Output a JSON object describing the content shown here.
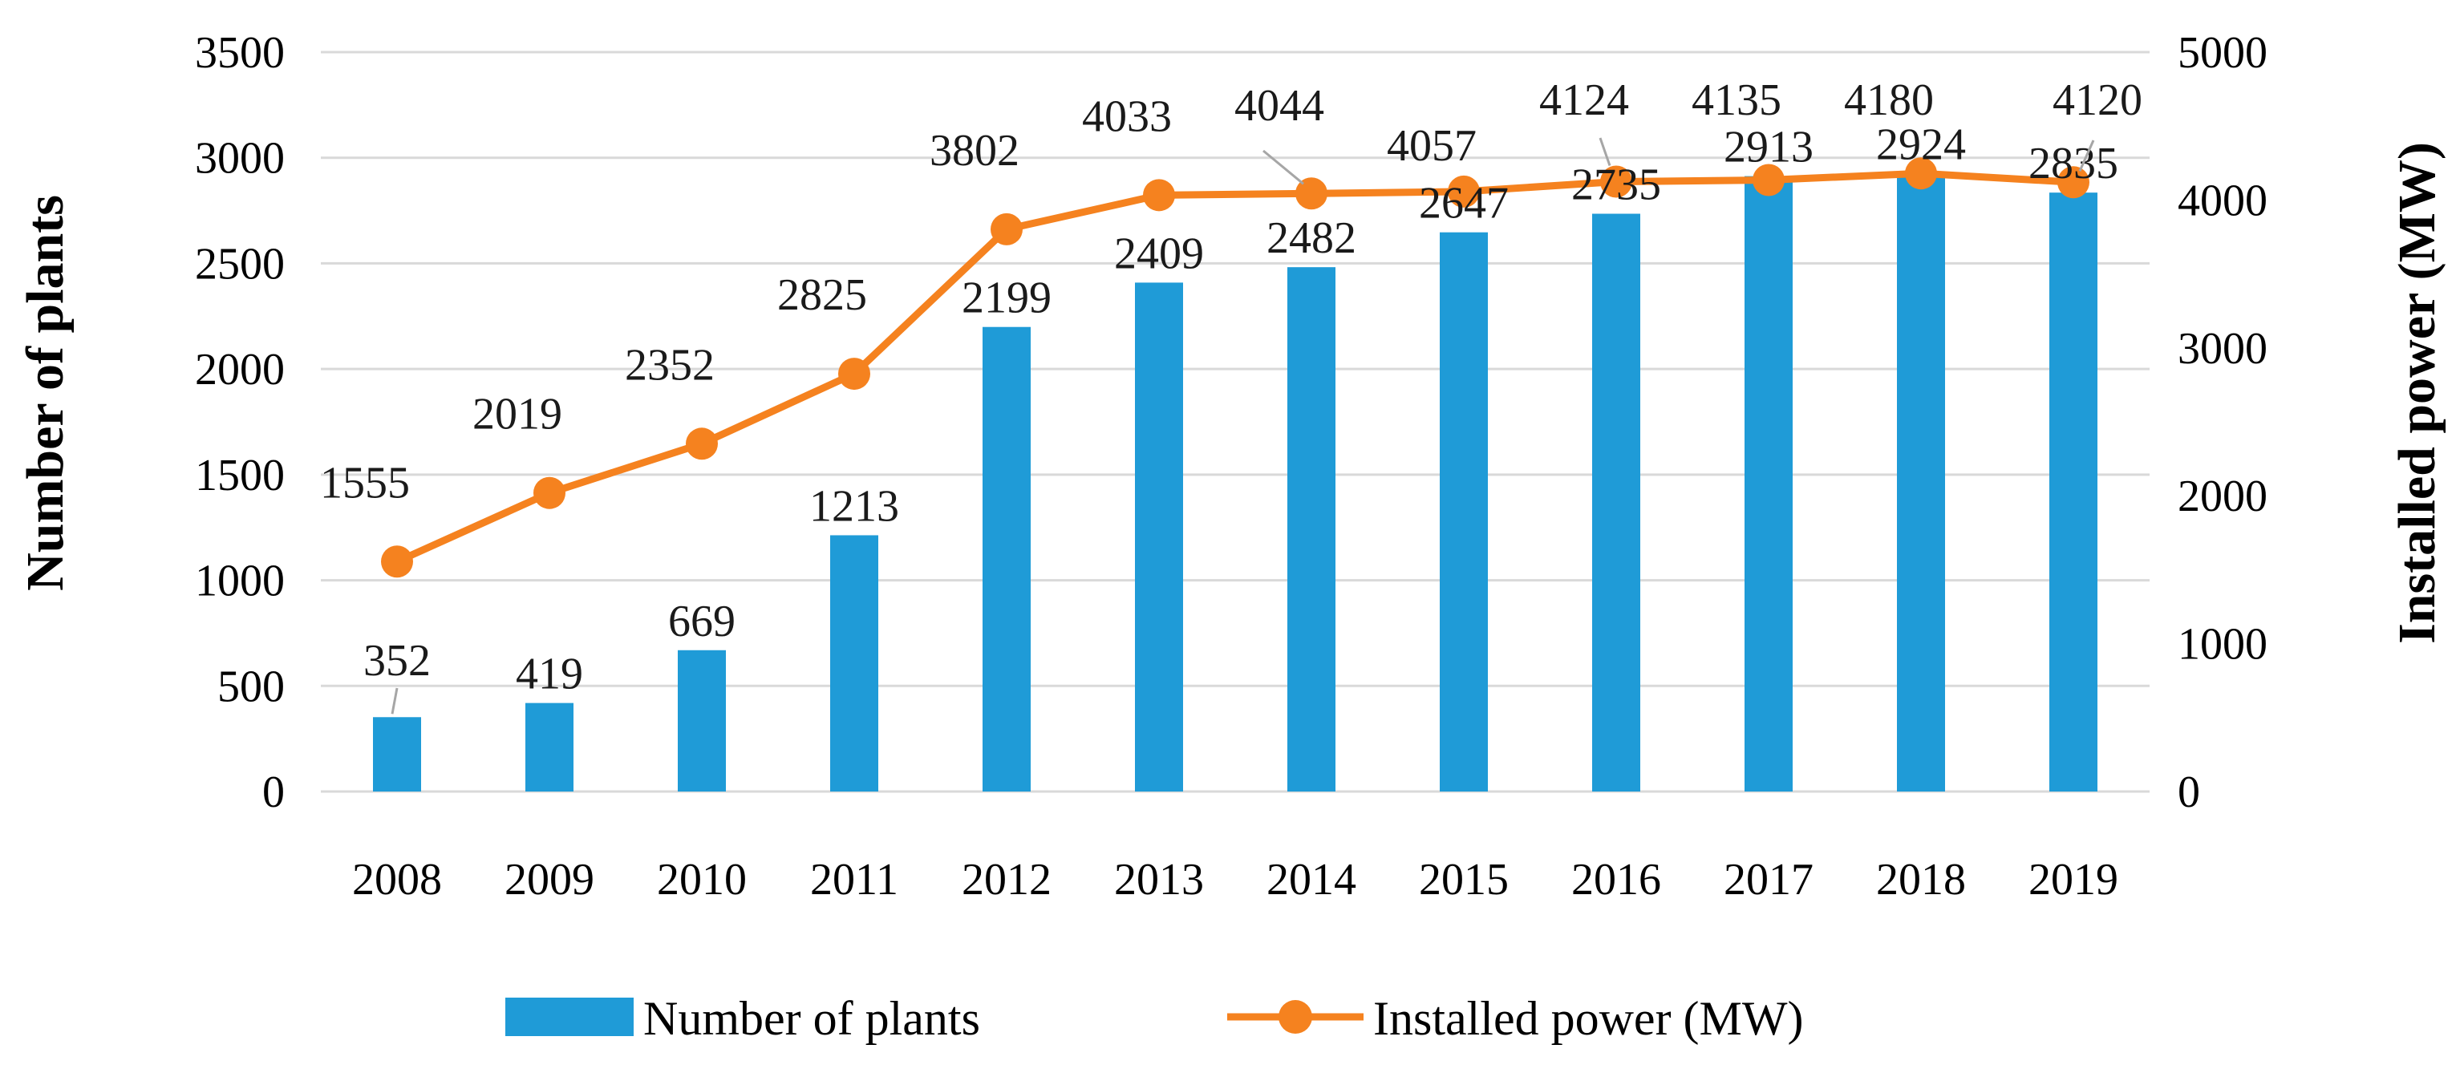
{
  "chart_data": {
    "type": "bar",
    "categories": [
      "2008",
      "2009",
      "2010",
      "2011",
      "2012",
      "2013",
      "2014",
      "2015",
      "2016",
      "2017",
      "2018",
      "2019"
    ],
    "series": [
      {
        "name": "Number of plants",
        "type": "bar",
        "axis": "left",
        "color": "#1f9bd7",
        "values": [
          352,
          419,
          669,
          1213,
          2199,
          2409,
          2482,
          2647,
          2735,
          2913,
          2924,
          2835
        ]
      },
      {
        "name": "Installed power (MW)",
        "type": "line",
        "axis": "right",
        "color": "#f5821f",
        "values": [
          1555,
          2019,
          2352,
          2825,
          3802,
          4033,
          4044,
          4057,
          4124,
          4135,
          4180,
          4120
        ]
      }
    ],
    "ylabel": "Number of plants",
    "ylabel_right": "Installed power (MW)",
    "ylim": [
      0,
      3500
    ],
    "ylim_right": [
      0,
      5000
    ],
    "yticks": [
      0,
      500,
      1000,
      1500,
      2000,
      2500,
      3000,
      3500
    ],
    "yticks_right": [
      0,
      1000,
      2000,
      3000,
      4000,
      5000
    ],
    "grid": true,
    "legend_position": "bottom"
  }
}
